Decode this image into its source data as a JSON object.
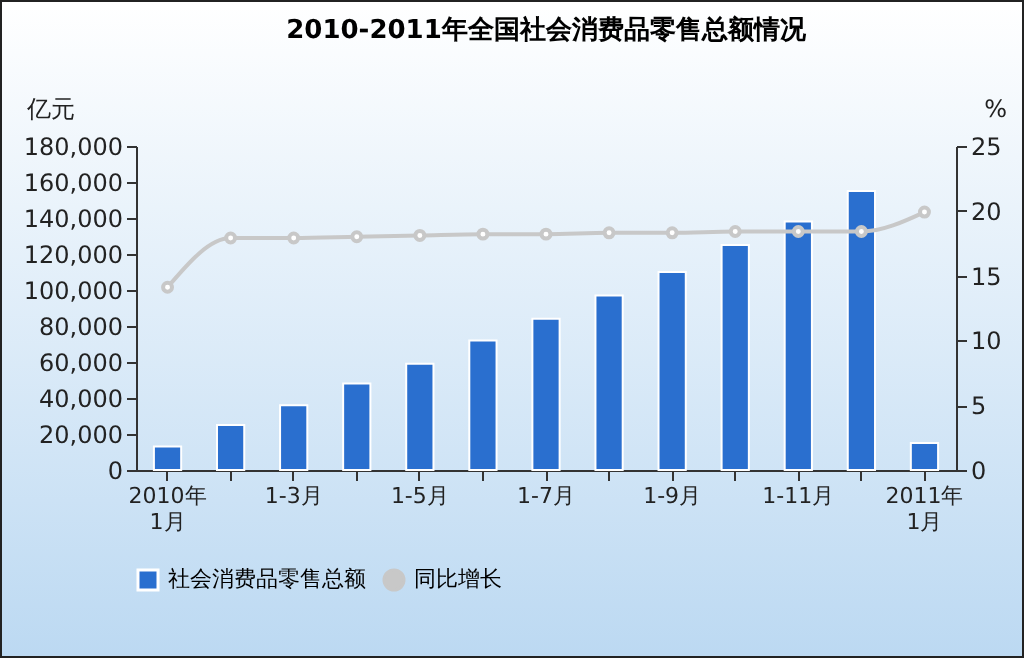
{
  "chart_data": {
    "type": "bar",
    "title": "2010-2011年全国社会消费品零售总额情况",
    "categories": [
      "2010年\n1月",
      null,
      "1-3月",
      null,
      "1-5月",
      null,
      "1-7月",
      null,
      "1-9月",
      null,
      "1-11月",
      null,
      "2011年\n1月"
    ],
    "series": [
      {
        "name": "社会消费品零售总额",
        "color": "#2a6fcf",
        "values": [
          13000,
          25000,
          36000,
          48000,
          59000,
          72000,
          84000,
          97000,
          110000,
          125000,
          138000,
          155000,
          15000
        ]
      },
      {
        "name": "同比增长",
        "type": "line",
        "axis": "y2",
        "color": "#c8c8c8",
        "values": [
          14.1,
          17.9,
          17.9,
          18.0,
          18.1,
          18.2,
          18.2,
          18.3,
          18.3,
          18.4,
          18.4,
          18.4,
          19.9
        ]
      }
    ],
    "ylabel": "亿元",
    "y2label": "%",
    "ylim": [
      0,
      180000
    ],
    "yticks": [
      {
        "value": 0,
        "label": "0"
      },
      {
        "value": 20000,
        "label": "20,000"
      },
      {
        "value": 40000,
        "label": "40,000"
      },
      {
        "value": 60000,
        "label": "60,000"
      },
      {
        "value": 80000,
        "label": "80,000"
      },
      {
        "value": 100000,
        "label": "100,000"
      },
      {
        "value": 120000,
        "label": "120,000"
      },
      {
        "value": 140000,
        "label": "140,000"
      },
      {
        "value": 160000,
        "label": "160,000"
      },
      {
        "value": 180000,
        "label": "180,000"
      }
    ],
    "y2lim": [
      0,
      25
    ],
    "y2ticks": [
      0,
      5,
      10,
      15,
      20,
      25
    ],
    "grid": false,
    "legend": "bottom",
    "marker": "circle"
  }
}
